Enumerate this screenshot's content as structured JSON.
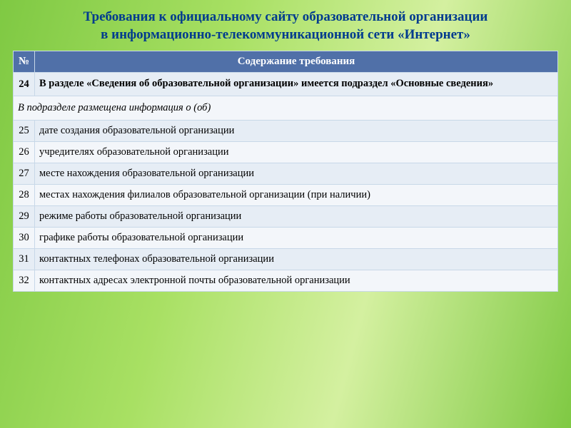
{
  "title_line1": "Требования к официальному сайту образовательной организации",
  "title_line2": "в информационно-телекоммуникационной сети «Интернет»",
  "header_num": "№",
  "header_content": "Содержание требования",
  "section_num": "24",
  "section_text": "В разделе «Сведения об образовательной организации» имеется подраздел «Основные сведения»",
  "subhead_text": "В подразделе размещена информация о (об)",
  "rows": [
    {
      "num": "25",
      "text": "дате создания образовательной организации"
    },
    {
      "num": "26",
      "text": "учредителях образовательной организации"
    },
    {
      "num": "27",
      "text": "месте нахождения образовательной организации"
    },
    {
      "num": "28",
      "text": "местах нахождения филиалов образовательной организации (при наличии)"
    },
    {
      "num": "29",
      "text": "режиме работы образовательной организации"
    },
    {
      "num": "30",
      "text": "графике работы образовательной организации"
    },
    {
      "num": "31",
      "text": "контактных телефонах образовательной организации"
    },
    {
      "num": "32",
      "text": "контактных адресах электронной почты образовательной организации"
    }
  ],
  "colors": {
    "title": "#003b8e",
    "header_bg": "#5070a8",
    "row_bg": "#e6edf5",
    "row_alt_bg": "#f3f6fa",
    "border": "#c8d8e8"
  }
}
